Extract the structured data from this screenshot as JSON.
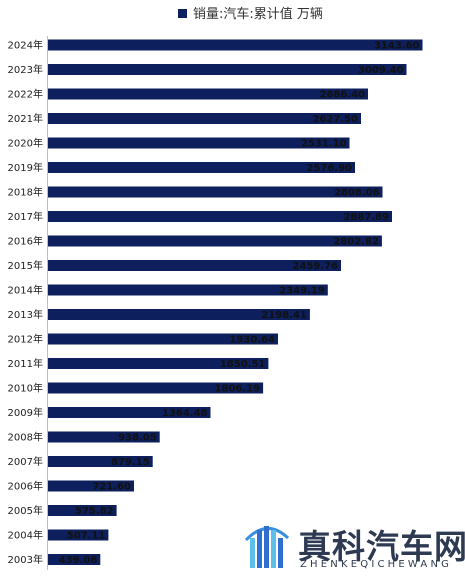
{
  "chart_data": {
    "type": "bar",
    "orientation": "horizontal",
    "series": [
      {
        "name": "销量:汽车:累计值 万辆",
        "color": "#0d1f5c",
        "values": [
          3143.6,
          3009.4,
          2686.4,
          2627.5,
          2531.1,
          2576.9,
          2808.06,
          2887.89,
          2802.82,
          2459.76,
          2349.19,
          2198.41,
          1930.64,
          1850.51,
          1806.19,
          1364.48,
          938.05,
          879.15,
          721.6,
          575.82,
          507.11,
          439.08
        ]
      }
    ],
    "categories": [
      "2024年",
      "2023年",
      "2022年",
      "2021年",
      "2020年",
      "2019年",
      "2018年",
      "2017年",
      "2016年",
      "2015年",
      "2014年",
      "2013年",
      "2012年",
      "2011年",
      "2010年",
      "2009年",
      "2008年",
      "2007年",
      "2006年",
      "2005年",
      "2004年",
      "2003年"
    ],
    "value_labels": [
      "3143.60",
      "3009.40",
      "2686.40",
      "2627.50",
      "2531.10",
      "2576.90",
      "2808.06",
      "2887.89",
      "2802.82",
      "2459.76",
      "2349.19",
      "2198.41",
      "1930.64",
      "1850.51",
      "1806.19",
      "1364.48",
      "938.05",
      "879.15",
      "721.60",
      "575.82",
      "507.11",
      "439.08"
    ],
    "legend": "top-center",
    "grid": false,
    "xlim": [
      0,
      3400
    ]
  },
  "watermark": {
    "brand_cn": "真科汽车网",
    "brand_en": "ZHENKEQICHEWANG",
    "colors": [
      "#2f6fd0",
      "#5cc0ea",
      "#2d3a52"
    ]
  }
}
